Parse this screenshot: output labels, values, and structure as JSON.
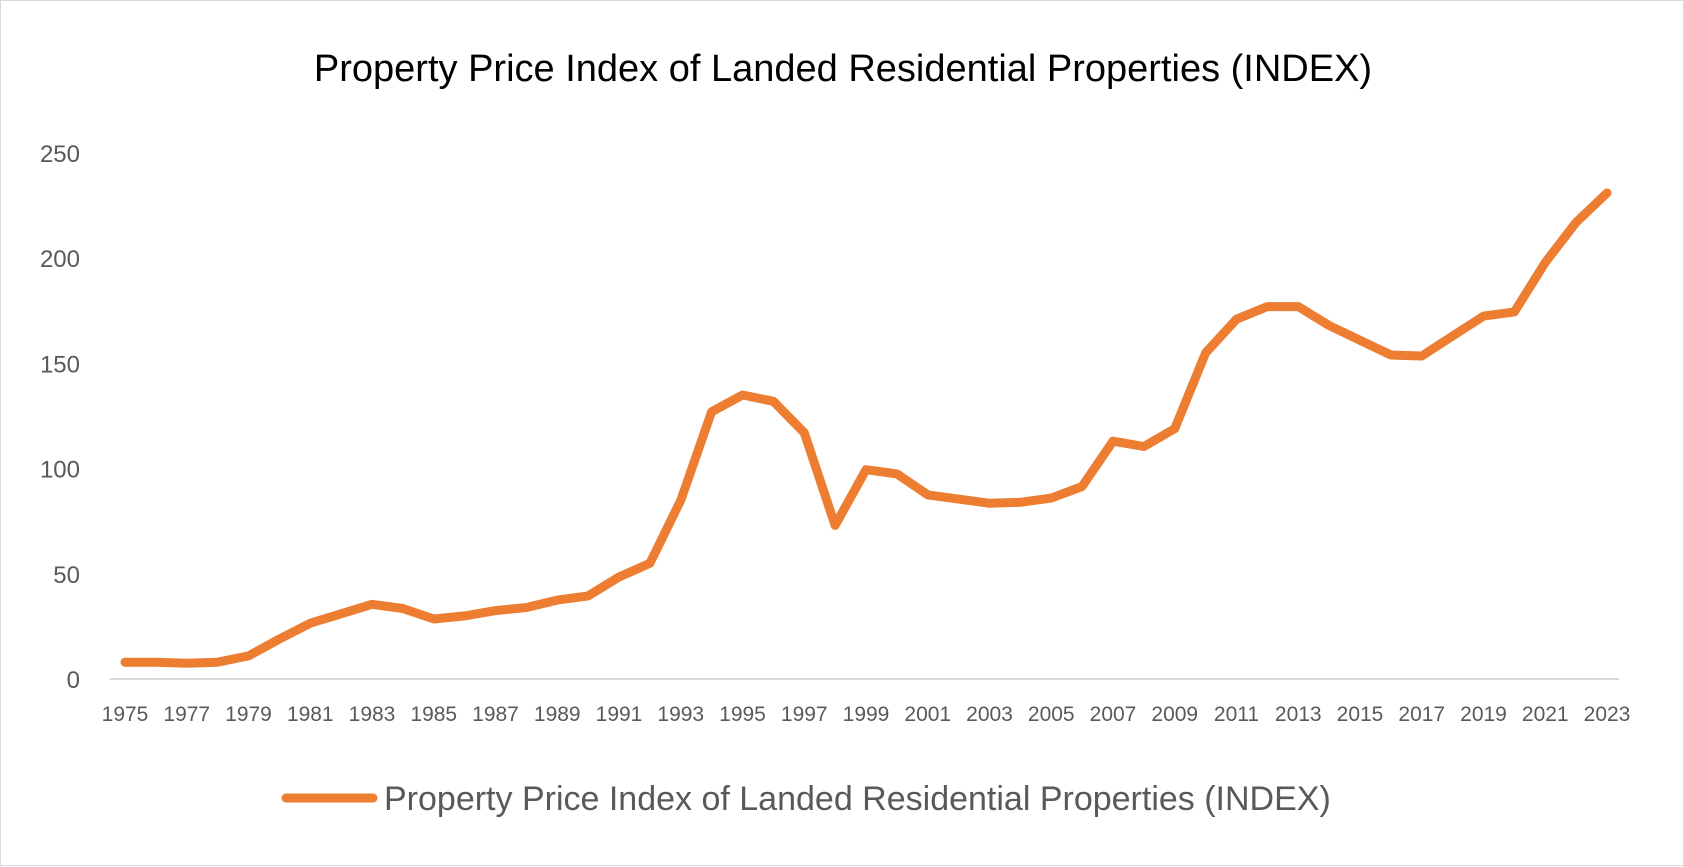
{
  "chart_data": {
    "type": "line",
    "title": "Property Price Index of Landed Residential Properties (INDEX)",
    "xlabel": "",
    "ylabel": "",
    "ylim": [
      0,
      250
    ],
    "y_ticks": [
      "0",
      "50",
      "100",
      "150",
      "200",
      "250"
    ],
    "x_tick_labels": [
      "1975",
      "1977",
      "1979",
      "1981",
      "1983",
      "1985",
      "1987",
      "1989",
      "1991",
      "1993",
      "1995",
      "1997",
      "1999",
      "2001",
      "2003",
      "2005",
      "2007",
      "2009",
      "2011",
      "2013",
      "2015",
      "2017",
      "2019",
      "2021",
      "2023"
    ],
    "grid": false,
    "legend_position": "bottom",
    "x": [
      1975,
      1976,
      1977,
      1978,
      1979,
      1980,
      1981,
      1982,
      1983,
      1984,
      1985,
      1986,
      1987,
      1988,
      1989,
      1990,
      1991,
      1992,
      1993,
      1994,
      1995,
      1996,
      1997,
      1998,
      1999,
      2000,
      2001,
      2002,
      2003,
      2004,
      2005,
      2006,
      2007,
      2008,
      2009,
      2010,
      2011,
      2012,
      2013,
      2014,
      2015,
      2016,
      2017,
      2018,
      2019,
      2020,
      2021,
      2022,
      2023
    ],
    "series": [
      {
        "name": "Property Price Index of Landed Residential Properties (INDEX)",
        "color": "#ED7D31",
        "values": [
          8,
          8,
          7.5,
          8,
          11,
          19,
          26.5,
          31,
          35.5,
          33.5,
          28.5,
          30,
          32.5,
          34,
          37.5,
          39.5,
          48.5,
          55,
          85,
          127,
          135,
          132,
          117,
          73,
          99.5,
          97.5,
          87.5,
          85.5,
          83.5,
          84,
          86,
          91.5,
          113,
          110.5,
          119,
          155,
          171,
          177,
          177,
          168,
          161,
          154,
          153.5,
          163,
          172.5,
          174.5,
          198,
          217,
          231
        ]
      }
    ]
  }
}
